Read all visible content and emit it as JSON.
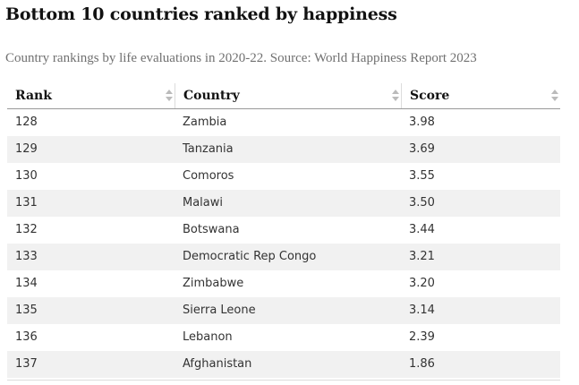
{
  "title": "Bottom 10 countries ranked by happiness",
  "subtitle": "Country rankings by life evaluations in 2020-22. Source: World Happiness Report 2023",
  "table": {
    "headers": [
      "Rank",
      "Country",
      "Score"
    ],
    "rows": [
      [
        "128",
        "Zambia",
        "3.98"
      ],
      [
        "129",
        "Tanzania",
        "3.69"
      ],
      [
        "130",
        "Comoros",
        "3.55"
      ],
      [
        "131",
        "Malawi",
        "3.50"
      ],
      [
        "132",
        "Botswana",
        "3.44"
      ],
      [
        "133",
        "Democratic Rep Congo",
        "3.21"
      ],
      [
        "134",
        "Zimbabwe",
        "3.20"
      ],
      [
        "135",
        "Sierra Leone",
        "3.14"
      ],
      [
        "136",
        "Lebanon",
        "2.39"
      ],
      [
        "137",
        "Afghanistan",
        "1.86"
      ]
    ]
  },
  "colors": {
    "stripe": "#f1f1f1",
    "text": "#121212",
    "subtitle": "#707070",
    "sort_arrow": "#bbbbbb"
  },
  "icons": {
    "sort": "sort-arrows-icon"
  }
}
